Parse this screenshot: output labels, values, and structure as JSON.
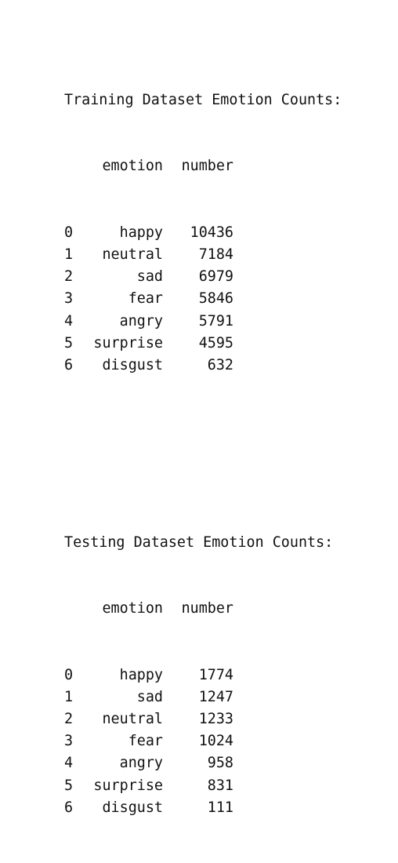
{
  "train": {
    "title": "Training Dataset Emotion Counts:",
    "col_emotion": "emotion",
    "col_number": "number",
    "rows": [
      {
        "idx": "0",
        "emotion": "happy",
        "number": "10436"
      },
      {
        "idx": "1",
        "emotion": "neutral",
        "number": "7184"
      },
      {
        "idx": "2",
        "emotion": "sad",
        "number": "6979"
      },
      {
        "idx": "3",
        "emotion": "fear",
        "number": "5846"
      },
      {
        "idx": "4",
        "emotion": "angry",
        "number": "5791"
      },
      {
        "idx": "5",
        "emotion": "surprise",
        "number": "4595"
      },
      {
        "idx": "6",
        "emotion": "disgust",
        "number": "632"
      }
    ]
  },
  "test": {
    "title": "Testing Dataset Emotion Counts:",
    "col_emotion": "emotion",
    "col_number": "number",
    "rows": [
      {
        "idx": "0",
        "emotion": "happy",
        "number": "1774"
      },
      {
        "idx": "1",
        "emotion": "sad",
        "number": "1247"
      },
      {
        "idx": "2",
        "emotion": "neutral",
        "number": "1233"
      },
      {
        "idx": "3",
        "emotion": "fear",
        "number": "1024"
      },
      {
        "idx": "4",
        "emotion": "angry",
        "number": "958"
      },
      {
        "idx": "5",
        "emotion": "surprise",
        "number": "831"
      },
      {
        "idx": "6",
        "emotion": "disgust",
        "number": "111"
      }
    ]
  }
}
